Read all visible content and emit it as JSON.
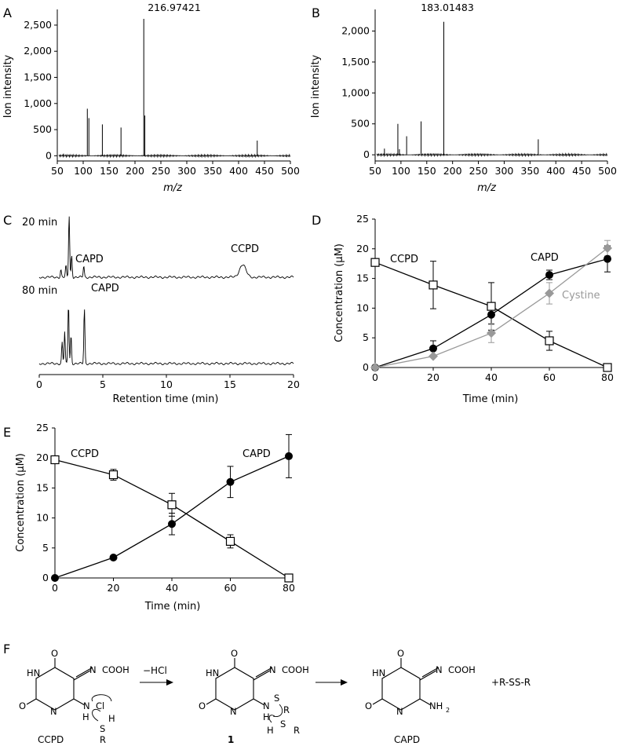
{
  "panels": {
    "a": {
      "letter": "A",
      "ylabel": "Ion intensity",
      "xlabel": "m/z",
      "peak_label": "216.97421"
    },
    "b": {
      "letter": "B",
      "ylabel": "Ion intensity",
      "xlabel": "m/z",
      "peak_label": "183.01483"
    },
    "c": {
      "letter": "C",
      "xlabel": "Retention time (min)",
      "trace1_label": "20 min",
      "trace2_label": "80 min",
      "t1_capd": "CAPD",
      "t1_ccpd": "CCPD",
      "t2_capd": "CAPD"
    },
    "d": {
      "letter": "D",
      "ylabel": "Concentration (µM)",
      "xlabel": "Time (min)",
      "label_ccpd": "CCPD",
      "label_capd": "CAPD",
      "label_cystine": "Cystine"
    },
    "e": {
      "letter": "E",
      "ylabel": "Concentration (µM)",
      "xlabel": "Time (min)",
      "label_ccpd": "CCPD",
      "label_capd": "CAPD"
    },
    "f": {
      "letter": "F",
      "reagent": "−HCl",
      "plus_text": "+R-SS-R",
      "m1": {
        "o": "O",
        "cooh": "COOH",
        "n_eq": "N",
        "hn": "HN",
        "n": "N",
        "o2": "O",
        "nh": "N",
        "h": "H",
        "cl": "Cl",
        "sh_h": "H",
        "s": "S",
        "r": "R",
        "caption": "CCPD"
      },
      "m2": {
        "o": "O",
        "cooh": "COOH",
        "n_eq": "N",
        "hn": "HN",
        "n": "N",
        "o2": "O",
        "nh": "N",
        "h": "H",
        "s1": "S",
        "r1": "R",
        "h2": "H",
        "s2": "S",
        "r2": "R",
        "caption": "1"
      },
      "m3": {
        "o": "O",
        "cooh": "COOH",
        "n_eq": "N",
        "hn": "HN",
        "n": "N",
        "o2": "O",
        "nh2": "NH",
        "sub2": "2",
        "caption": "CAPD"
      }
    }
  },
  "chart_data": [
    {
      "id": "A",
      "type": "bar",
      "title": "",
      "xlabel": "m/z",
      "ylabel": "Ion intensity",
      "xlim": [
        50,
        500
      ],
      "ylim": [
        -100,
        2800
      ],
      "xticks": [
        50,
        100,
        150,
        200,
        250,
        300,
        350,
        400,
        450,
        500
      ],
      "yticks": [
        0,
        500,
        1000,
        1500,
        2000,
        2500
      ],
      "ytick_labels": [
        "0",
        "500",
        "1,000",
        "1,500",
        "2,000",
        "2,500"
      ],
      "peaks": [
        [
          62,
          40
        ],
        [
          108,
          900
        ],
        [
          111,
          720
        ],
        [
          137,
          600
        ],
        [
          173,
          540
        ],
        [
          216.97,
          2620
        ],
        [
          219,
          770
        ],
        [
          436,
          290
        ]
      ],
      "annotation": "216.97421"
    },
    {
      "id": "B",
      "type": "bar",
      "title": "",
      "xlabel": "m/z",
      "ylabel": "Ion intensity",
      "xlim": [
        50,
        500
      ],
      "ylim": [
        -100,
        2350
      ],
      "xticks": [
        50,
        100,
        150,
        200,
        250,
        300,
        350,
        400,
        450,
        500
      ],
      "yticks": [
        0,
        500,
        1000,
        1500,
        2000
      ],
      "ytick_labels": [
        "0",
        "500",
        "1,000",
        "1,500",
        "2,000"
      ],
      "peaks": [
        [
          68,
          100
        ],
        [
          94,
          500
        ],
        [
          97,
          90
        ],
        [
          111,
          300
        ],
        [
          139,
          540
        ],
        [
          183.01,
          2150
        ],
        [
          366,
          250
        ]
      ],
      "annotation": "183.01483"
    },
    {
      "id": "C",
      "type": "line",
      "title": "",
      "xlabel": "Retention time (min)",
      "xlim": [
        0,
        20
      ],
      "xticks": [
        0,
        5,
        10,
        15,
        20
      ],
      "series": [
        {
          "name": "20 min",
          "peaks": [
            [
              1.7,
              0.12
            ],
            [
              2.1,
              0.18
            ],
            [
              2.35,
              1.0
            ],
            [
              2.55,
              0.35
            ],
            [
              3.5,
              0.18
            ],
            [
              16.0,
              0.2
            ]
          ]
        },
        {
          "name": "80 min",
          "peaks": [
            [
              1.8,
              0.3
            ],
            [
              2.0,
              0.45
            ],
            [
              2.3,
              0.85
            ],
            [
              2.5,
              0.4
            ],
            [
              3.55,
              0.78
            ]
          ]
        }
      ],
      "annotations": [
        "CAPD",
        "CCPD",
        "CAPD"
      ]
    },
    {
      "id": "D",
      "type": "line",
      "title": "",
      "xlabel": "Time (min)",
      "ylabel": "Concentration (µM)",
      "xlim": [
        0,
        80
      ],
      "ylim": [
        0,
        25
      ],
      "x": [
        0,
        20,
        40,
        60,
        80
      ],
      "xticks": [
        0,
        20,
        40,
        60,
        80
      ],
      "yticks": [
        0,
        5,
        10,
        15,
        20,
        25
      ],
      "series": [
        {
          "name": "CCPD",
          "marker": "open-square",
          "values": [
            17.7,
            13.9,
            10.3,
            4.5,
            0
          ],
          "errors": [
            0,
            4.0,
            4.0,
            1.6,
            0
          ]
        },
        {
          "name": "CAPD",
          "marker": "filled-circle",
          "values": [
            0,
            3.2,
            8.9,
            15.6,
            18.3
          ],
          "errors": [
            0,
            1.3,
            1.6,
            0.8,
            2.2
          ]
        },
        {
          "name": "Cystine",
          "marker": "diamond",
          "color": "#999999",
          "values": [
            0,
            1.9,
            5.8,
            12.5,
            20.1
          ],
          "errors": [
            0,
            0,
            1.6,
            1.8,
            1.3
          ]
        }
      ]
    },
    {
      "id": "E",
      "type": "line",
      "title": "",
      "xlabel": "Time (min)",
      "ylabel": "Concentration (µM)",
      "xlim": [
        0,
        80
      ],
      "ylim": [
        0,
        25
      ],
      "x": [
        0,
        20,
        40,
        60,
        80
      ],
      "xticks": [
        0,
        20,
        40,
        60,
        80
      ],
      "yticks": [
        0,
        5,
        10,
        15,
        20,
        25
      ],
      "series": [
        {
          "name": "CCPD",
          "marker": "open-square",
          "values": [
            19.7,
            17.2,
            12.2,
            6.1,
            0
          ],
          "errors": [
            0,
            0.9,
            1.9,
            1.1,
            0
          ]
        },
        {
          "name": "CAPD",
          "marker": "filled-circle",
          "values": [
            0,
            3.4,
            9.0,
            16.0,
            20.3
          ],
          "errors": [
            0,
            0,
            1.8,
            2.6,
            3.6
          ]
        }
      ]
    }
  ]
}
